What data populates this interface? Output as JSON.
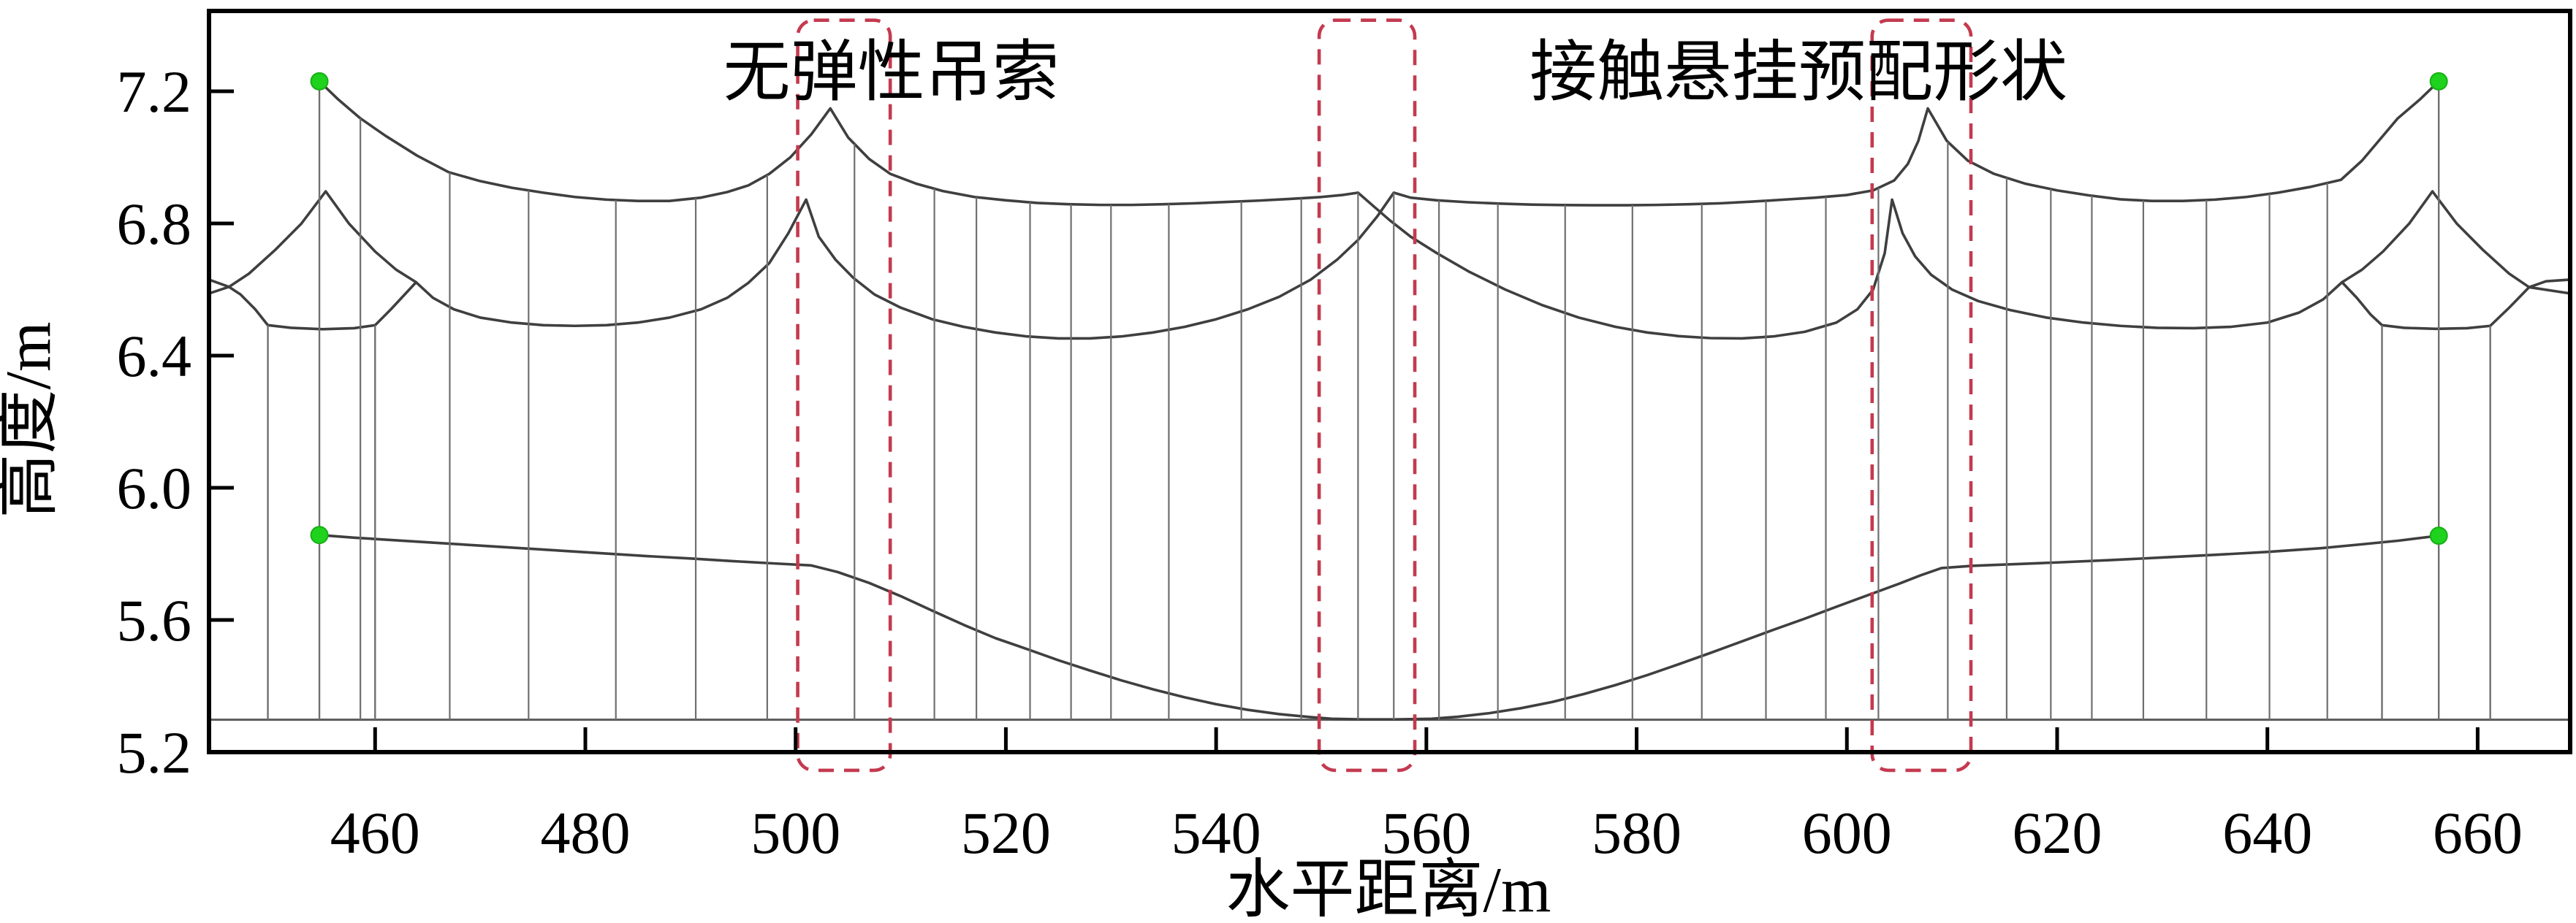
{
  "figure": {
    "title": "",
    "annotation_dropper_label": "无弹性吊索",
    "annotation_preset_label": "接触悬挂预配形状"
  },
  "style": {
    "wire_color": "#3f3f3f",
    "preset_wire_color": "#5a5a5a",
    "dropper_color": "#6f6f6f",
    "box_color": "#c43a4f",
    "anchor_dot_color": "#1ed21e",
    "axis_color": "#000000"
  },
  "chart_data": {
    "type": "line",
    "title": "",
    "xlabel": "水平距离/m",
    "ylabel": "高度/m",
    "xlim": [
      444.2,
      668.8
    ],
    "ylim": [
      5.2,
      7.443
    ],
    "grid": false,
    "x_ticks": [
      {
        "v": 460,
        "label": "460"
      },
      {
        "v": 480,
        "label": "480"
      },
      {
        "v": 500,
        "label": "500"
      },
      {
        "v": 520,
        "label": "520"
      },
      {
        "v": 540,
        "label": "540"
      },
      {
        "v": 560,
        "label": "560"
      },
      {
        "v": 580,
        "label": "580"
      },
      {
        "v": 600,
        "label": "600"
      },
      {
        "v": 620,
        "label": "620"
      },
      {
        "v": 640,
        "label": "640"
      },
      {
        "v": 660,
        "label": "660"
      }
    ],
    "y_ticks": [
      {
        "v": 7.2,
        "label": "7.2"
      },
      {
        "v": 6.8,
        "label": "6.8"
      },
      {
        "v": 6.4,
        "label": "6.4"
      },
      {
        "v": 6.0,
        "label": "6.0"
      },
      {
        "v": 5.6,
        "label": "5.6"
      },
      {
        "v": 5.2,
        "label": "5.2"
      }
    ],
    "annotations": [
      {
        "id": "label-inelastic-dropper",
        "text": "无弹性吊索",
        "x": 509.1,
        "y": 7.26
      },
      {
        "id": "label-preset-shape",
        "text": "接触悬挂预配形状",
        "x": 595.4,
        "y": 7.26
      }
    ],
    "highlight_boxes": [
      {
        "x1": 500.2,
        "x2": 509.0,
        "y1": 5.145,
        "y2": 7.415
      },
      {
        "x1": 549.8,
        "x2": 558.9,
        "y1": 5.145,
        "y2": 7.415
      },
      {
        "x1": 602.4,
        "x2": 611.8,
        "y1": 5.145,
        "y2": 7.415
      }
    ],
    "anchors": [
      {
        "x": 454.7,
        "y": 7.23
      },
      {
        "x": 656.3,
        "y": 7.23
      },
      {
        "x": 454.7,
        "y": 5.857
      },
      {
        "x": 656.3,
        "y": 5.855
      }
    ],
    "series": [
      {
        "name": "messenger-wire-left-anchored",
        "role": "wire",
        "width": 3.6,
        "points": [
          [
            454.7,
            7.23
          ],
          [
            456.5,
            7.175
          ],
          [
            458.6,
            7.118
          ],
          [
            461,
            7.065
          ],
          [
            464,
            7.005
          ],
          [
            467,
            6.955
          ],
          [
            470,
            6.928
          ],
          [
            473,
            6.908
          ],
          [
            476,
            6.893
          ],
          [
            479,
            6.88
          ],
          [
            482,
            6.872
          ],
          [
            485,
            6.868
          ],
          [
            488,
            6.868
          ],
          [
            491,
            6.878
          ],
          [
            493.5,
            6.895
          ],
          [
            495.5,
            6.915
          ],
          [
            497.5,
            6.95
          ],
          [
            499.5,
            7.0
          ],
          [
            501.5,
            7.07
          ],
          [
            503.3,
            7.148
          ],
          [
            505,
            7.06
          ],
          [
            507,
            6.995
          ],
          [
            509,
            6.95
          ],
          [
            511.5,
            6.92
          ],
          [
            514,
            6.898
          ],
          [
            517,
            6.88
          ],
          [
            520,
            6.87
          ],
          [
            523,
            6.862
          ],
          [
            526,
            6.858
          ],
          [
            529,
            6.856
          ],
          [
            532,
            6.856
          ],
          [
            535,
            6.858
          ],
          [
            538,
            6.861
          ],
          [
            541,
            6.865
          ],
          [
            544,
            6.869
          ],
          [
            547,
            6.874
          ],
          [
            550,
            6.88
          ],
          [
            552,
            6.886
          ],
          [
            553.5,
            6.893
          ],
          [
            554.8,
            6.857
          ],
          [
            556.5,
            6.81
          ],
          [
            558.5,
            6.76
          ],
          [
            561,
            6.71
          ],
          [
            564,
            6.655
          ],
          [
            567.5,
            6.6
          ],
          [
            571,
            6.553
          ],
          [
            574.5,
            6.515
          ],
          [
            578,
            6.487
          ],
          [
            581,
            6.47
          ],
          [
            584,
            6.459
          ],
          [
            587,
            6.453
          ],
          [
            590,
            6.452
          ],
          [
            593,
            6.458
          ],
          [
            596,
            6.472
          ],
          [
            599,
            6.5
          ],
          [
            601,
            6.54
          ],
          [
            602.5,
            6.6
          ],
          [
            603.6,
            6.71
          ],
          [
            604.3,
            6.872
          ],
          [
            605.3,
            6.77
          ],
          [
            606.5,
            6.7
          ],
          [
            608,
            6.645
          ],
          [
            610,
            6.6
          ],
          [
            612.5,
            6.565
          ],
          [
            615.5,
            6.538
          ],
          [
            619,
            6.515
          ],
          [
            622.5,
            6.5
          ],
          [
            626,
            6.49
          ],
          [
            629.5,
            6.484
          ],
          [
            633,
            6.483
          ],
          [
            636.5,
            6.487
          ],
          [
            640,
            6.5
          ],
          [
            643,
            6.53
          ],
          [
            645.3,
            6.57
          ],
          [
            647.1,
            6.622
          ],
          [
            648.5,
            6.575
          ],
          [
            649.8,
            6.525
          ],
          [
            650.9,
            6.492
          ],
          [
            653,
            6.484
          ],
          [
            656,
            6.481
          ],
          [
            659,
            6.483
          ],
          [
            661.2,
            6.49
          ],
          [
            663,
            6.545
          ],
          [
            664.9,
            6.607
          ],
          [
            666.5,
            6.625
          ],
          [
            668.8,
            6.63
          ]
        ]
      },
      {
        "name": "messenger-wire-right-anchored",
        "role": "wire",
        "width": 3.6,
        "points": [
          [
            444.2,
            6.63
          ],
          [
            446.1,
            6.608
          ],
          [
            447.2,
            6.585
          ],
          [
            448.6,
            6.54
          ],
          [
            449.8,
            6.492
          ],
          [
            452,
            6.484
          ],
          [
            455,
            6.48
          ],
          [
            458,
            6.483
          ],
          [
            460.0,
            6.492
          ],
          [
            461.5,
            6.54
          ],
          [
            463.9,
            6.622
          ],
          [
            465.5,
            6.575
          ],
          [
            467.5,
            6.54
          ],
          [
            470,
            6.515
          ],
          [
            473,
            6.5
          ],
          [
            476,
            6.492
          ],
          [
            479,
            6.49
          ],
          [
            482,
            6.492
          ],
          [
            485,
            6.5
          ],
          [
            488,
            6.515
          ],
          [
            491,
            6.54
          ],
          [
            493.5,
            6.575
          ],
          [
            495.5,
            6.62
          ],
          [
            497.5,
            6.68
          ],
          [
            499.3,
            6.77
          ],
          [
            501.0,
            6.872
          ],
          [
            502.2,
            6.76
          ],
          [
            503.8,
            6.69
          ],
          [
            505.5,
            6.635
          ],
          [
            507.5,
            6.585
          ],
          [
            510,
            6.545
          ],
          [
            513,
            6.51
          ],
          [
            516,
            6.487
          ],
          [
            519,
            6.47
          ],
          [
            522,
            6.458
          ],
          [
            525,
            6.452
          ],
          [
            528,
            6.452
          ],
          [
            531,
            6.458
          ],
          [
            534,
            6.47
          ],
          [
            537,
            6.487
          ],
          [
            540,
            6.51
          ],
          [
            543,
            6.54
          ],
          [
            546,
            6.578
          ],
          [
            549,
            6.63
          ],
          [
            551.5,
            6.69
          ],
          [
            553.5,
            6.75
          ],
          [
            555.3,
            6.82
          ],
          [
            556.9,
            6.893
          ],
          [
            558.5,
            6.878
          ],
          [
            561,
            6.87
          ],
          [
            564,
            6.864
          ],
          [
            567,
            6.86
          ],
          [
            570,
            6.857
          ],
          [
            573,
            6.8555
          ],
          [
            576,
            6.855
          ],
          [
            579,
            6.855
          ],
          [
            582,
            6.856
          ],
          [
            585,
            6.858
          ],
          [
            588,
            6.861
          ],
          [
            591,
            6.866
          ],
          [
            594,
            6.872
          ],
          [
            597,
            6.878
          ],
          [
            600,
            6.886
          ],
          [
            602.5,
            6.9
          ],
          [
            604.5,
            6.93
          ],
          [
            605.8,
            6.98
          ],
          [
            606.8,
            7.05
          ],
          [
            607.7,
            7.148
          ],
          [
            609.5,
            7.05
          ],
          [
            611.5,
            6.99
          ],
          [
            614,
            6.95
          ],
          [
            617,
            6.92
          ],
          [
            620,
            6.9
          ],
          [
            623,
            6.885
          ],
          [
            626,
            6.873
          ],
          [
            629,
            6.868
          ],
          [
            632,
            6.868
          ],
          [
            635,
            6.872
          ],
          [
            638,
            6.88
          ],
          [
            641,
            6.893
          ],
          [
            644,
            6.91
          ],
          [
            647,
            6.932
          ],
          [
            649,
            6.99
          ],
          [
            652.4,
            7.118
          ],
          [
            654.5,
            7.175
          ],
          [
            656.3,
            7.23
          ]
        ]
      },
      {
        "name": "anchor-structure-left",
        "role": "wire",
        "width": 3.6,
        "points": [
          [
            444.2,
            6.588
          ],
          [
            446.1,
            6.608
          ],
          [
            448,
            6.648
          ],
          [
            450.5,
            6.72
          ],
          [
            453,
            6.8
          ],
          [
            455.3,
            6.897
          ],
          [
            457.5,
            6.8
          ],
          [
            460,
            6.715
          ],
          [
            462,
            6.66
          ],
          [
            463.9,
            6.622
          ]
        ]
      },
      {
        "name": "anchor-structure-right",
        "role": "wire",
        "width": 3.6,
        "points": [
          [
            647.1,
            6.622
          ],
          [
            649,
            6.66
          ],
          [
            651,
            6.715
          ],
          [
            653.5,
            6.8
          ],
          [
            655.7,
            6.897
          ],
          [
            658,
            6.8
          ],
          [
            660.5,
            6.72
          ],
          [
            663,
            6.648
          ],
          [
            664.9,
            6.607
          ],
          [
            668.8,
            6.588
          ]
        ]
      },
      {
        "name": "contact-wire-preset",
        "role": "preset",
        "width": 3.0,
        "points": [
          [
            444.2,
            5.298
          ],
          [
            668.8,
            5.298
          ]
        ]
      },
      {
        "name": "contact-wire-sagged",
        "role": "wire",
        "width": 3.6,
        "points": [
          [
            454.7,
            5.857
          ],
          [
            458,
            5.849
          ],
          [
            462,
            5.841
          ],
          [
            466,
            5.833
          ],
          [
            470,
            5.825
          ],
          [
            474,
            5.817
          ],
          [
            478,
            5.809
          ],
          [
            482,
            5.801
          ],
          [
            486,
            5.793
          ],
          [
            490,
            5.786
          ],
          [
            494,
            5.778
          ],
          [
            498,
            5.771
          ],
          [
            501.5,
            5.765
          ],
          [
            504,
            5.745
          ],
          [
            507,
            5.712
          ],
          [
            510,
            5.672
          ],
          [
            513,
            5.628
          ],
          [
            516,
            5.585
          ],
          [
            519,
            5.545
          ],
          [
            522,
            5.512
          ],
          [
            525,
            5.478
          ],
          [
            528,
            5.447
          ],
          [
            531,
            5.417
          ],
          [
            534,
            5.39
          ],
          [
            537,
            5.366
          ],
          [
            540,
            5.345
          ],
          [
            543,
            5.328
          ],
          [
            546,
            5.315
          ],
          [
            549,
            5.306
          ],
          [
            551,
            5.301
          ],
          [
            554,
            5.299
          ],
          [
            557,
            5.299
          ],
          [
            560.5,
            5.301
          ],
          [
            563,
            5.307
          ],
          [
            566,
            5.318
          ],
          [
            569,
            5.333
          ],
          [
            572,
            5.352
          ],
          [
            575,
            5.376
          ],
          [
            578,
            5.403
          ],
          [
            581,
            5.433
          ],
          [
            584,
            5.466
          ],
          [
            587,
            5.5
          ],
          [
            590,
            5.535
          ],
          [
            593,
            5.57
          ],
          [
            596,
            5.604
          ],
          [
            599,
            5.64
          ],
          [
            602,
            5.675
          ],
          [
            605,
            5.71
          ],
          [
            607,
            5.735
          ],
          [
            609,
            5.757
          ],
          [
            612,
            5.764
          ],
          [
            616,
            5.769
          ],
          [
            620,
            5.774
          ],
          [
            625,
            5.781
          ],
          [
            630,
            5.789
          ],
          [
            635,
            5.797
          ],
          [
            640,
            5.806
          ],
          [
            645,
            5.817
          ],
          [
            649,
            5.829
          ],
          [
            652.5,
            5.84
          ],
          [
            656.3,
            5.855
          ]
        ]
      }
    ],
    "droppers": {
      "x_positions": [
        458.6,
        467.1,
        474.6,
        482.9,
        490.5,
        497.3,
        505.6,
        513.2,
        517.2,
        522.3,
        526.2,
        530.0,
        535.5,
        542.4,
        548.1,
        553.5,
        556.9,
        561.2,
        566.8,
        573.2,
        579.6,
        586.2,
        592.3,
        598.0,
        603.0,
        609.6,
        615.2,
        619.4,
        623.3,
        628.2,
        634.2,
        640.2,
        645.7
      ],
      "bottom": 5.298
    },
    "posts": [
      {
        "x": 449.8,
        "top": 6.492,
        "bottom": 5.298
      },
      {
        "x": 460.0,
        "top": 6.492,
        "bottom": 5.298
      },
      {
        "x": 650.9,
        "top": 6.492,
        "bottom": 5.298
      },
      {
        "x": 661.2,
        "top": 6.49,
        "bottom": 5.298
      },
      {
        "x": 454.7,
        "top": 7.23,
        "bottom": 5.298
      },
      {
        "x": 656.3,
        "top": 7.23,
        "bottom": 5.298
      }
    ]
  }
}
